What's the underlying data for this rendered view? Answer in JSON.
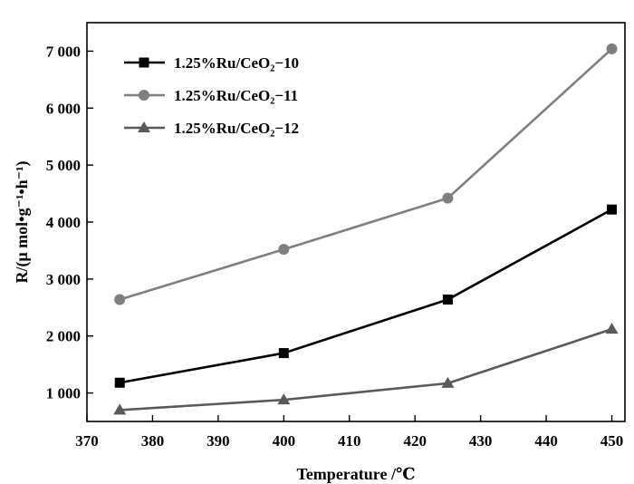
{
  "chart_data": {
    "type": "line",
    "title": "",
    "xlabel": "Temperature /℃",
    "ylabel": "R/(μ mol•g⁻¹•h⁻¹)",
    "x": [
      375,
      400,
      425,
      450
    ],
    "xlim": [
      370,
      452
    ],
    "ylim": [
      500,
      7500
    ],
    "x_ticks": [
      370,
      380,
      390,
      400,
      410,
      420,
      430,
      440,
      450
    ],
    "x_tick_labels": [
      "370",
      "380",
      "390",
      "400",
      "410",
      "420",
      "430",
      "440",
      "450"
    ],
    "y_ticks": [
      1000,
      2000,
      3000,
      4000,
      5000,
      6000,
      7000
    ],
    "y_tick_labels": [
      "1 000",
      "2 000",
      "3 000",
      "4 000",
      "5 000",
      "6 000",
      "7 000"
    ],
    "grid": false,
    "legend_position": "top-left",
    "series": [
      {
        "name": "1.25%Ru/CeO₂−10",
        "values": [
          1180,
          1700,
          2640,
          4220
        ],
        "color": "#000000",
        "marker": "square"
      },
      {
        "name": "1.25%Ru/CeO₂−11",
        "values": [
          2640,
          3520,
          4420,
          7040
        ],
        "color": "#7f7f7f",
        "marker": "circle"
      },
      {
        "name": "1.25%Ru/CeO₂−12",
        "values": [
          700,
          880,
          1170,
          2120
        ],
        "color": "#595959",
        "marker": "triangle"
      }
    ]
  }
}
